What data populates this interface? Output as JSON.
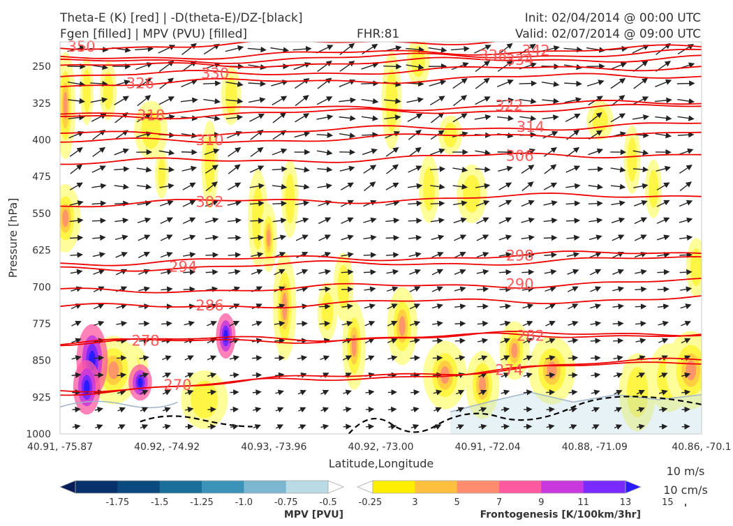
{
  "header": {
    "title_left_1": "Theta-E (K) [red] | -D(theta-E)/DZ-[black]",
    "title_left_2": "Fgen [filled] | MPV (PVU) [filled]",
    "title_center": "FHR:81",
    "title_right_1": "Init: 02/04/2014 @ 00:00 UTC",
    "title_right_2": "Valid: 02/07/2014 @ 09:00 UTC"
  },
  "chart_data": {
    "type": "contour",
    "xlabel": "Latitude,Longitude",
    "ylabel": "Pressure [hPa]",
    "x_ticks": [
      "40.91, -75.87",
      "40.92, -74.92",
      "40.93, -73.96",
      "40.92, -73.00",
      "40.91, -72.04",
      "40.88, -71.09",
      "40.86, -70.1"
    ],
    "y_ticks": [
      250,
      325,
      400,
      475,
      550,
      625,
      700,
      775,
      850,
      925,
      1000
    ],
    "ylim": [
      1000,
      200
    ],
    "theta_e_contours": [
      {
        "value": "270",
        "label_x_index": 1.1,
        "label_p": 900
      },
      {
        "value": "274",
        "label_x_index": 4.2,
        "label_p": 870
      },
      {
        "value": "278",
        "label_x_index": 0.8,
        "label_p": 810
      },
      {
        "value": "282",
        "label_x_index": 4.4,
        "label_p": 800
      },
      {
        "value": "286",
        "label_x_index": 1.4,
        "label_p": 738
      },
      {
        "value": "290",
        "label_x_index": 4.3,
        "label_p": 695
      },
      {
        "value": "294",
        "label_x_index": 1.15,
        "label_p": 659
      },
      {
        "value": "298",
        "label_x_index": 4.3,
        "label_p": 636
      },
      {
        "value": "302",
        "label_x_index": 1.4,
        "label_p": 527
      },
      {
        "value": "306",
        "label_x_index": 4.3,
        "label_p": 433
      },
      {
        "value": "310",
        "label_x_index": 1.4,
        "label_p": 401
      },
      {
        "value": "314",
        "label_x_index": 4.4,
        "label_p": 374
      },
      {
        "value": "318",
        "label_x_index": 0.85,
        "label_p": 350
      },
      {
        "value": "322",
        "label_x_index": 4.2,
        "label_p": 330
      },
      {
        "value": "326",
        "label_x_index": 0.75,
        "label_p": 285
      },
      {
        "value": "330",
        "label_x_index": 1.45,
        "label_p": 265
      },
      {
        "value": "334",
        "label_x_index": 4.3,
        "label_p": 237
      },
      {
        "value": "338",
        "label_x_index": 4.05,
        "label_p": 228
      },
      {
        "value": "342",
        "label_x_index": 4.45,
        "label_p": 218
      },
      {
        "value": "350",
        "label_x_index": 0.2,
        "label_p": 210
      }
    ],
    "mpv_colorbar": {
      "title": "MPV [PVU]",
      "levels": [
        "-1.75",
        "-1.5",
        "-1.25",
        "-1.0",
        "-0.75",
        "-0.5",
        "-0.25"
      ],
      "colors": [
        "#081d58",
        "#08306b",
        "#0b4a7e",
        "#1a6e9a",
        "#3b93b7",
        "#7cb6d0",
        "#b8dbe6",
        "#ffffff"
      ]
    },
    "fgen_colorbar": {
      "title": "Frontogenesis [K/100km/3hr]",
      "levels": [
        "3",
        "5",
        "7",
        "9",
        "11",
        "13",
        "15"
      ],
      "colors": [
        "#ffffff",
        "#ffee00",
        "#ffc040",
        "#ff8c6e",
        "#ff5aa0",
        "#c838dc",
        "#7a2aff",
        "#2a1aff"
      ]
    },
    "vector_key": {
      "label_1": "10 m/s",
      "label_2": "10 cm/s"
    }
  }
}
